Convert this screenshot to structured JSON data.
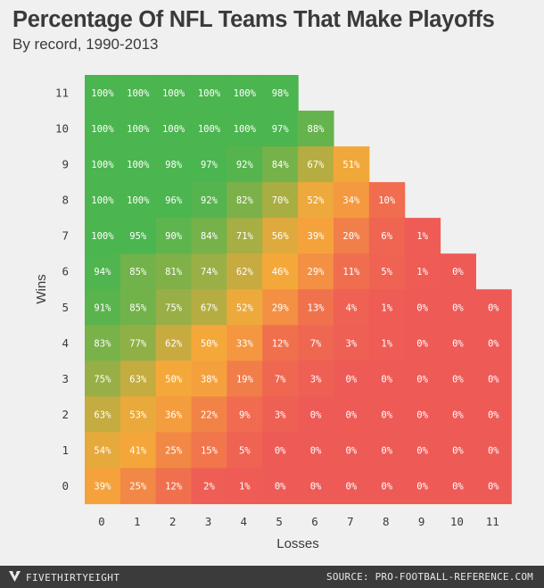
{
  "title": "Percentage Of NFL Teams That Make Playoffs",
  "subtitle": "By record, 1990-2013",
  "footer": {
    "brand": "FIVETHIRTYEIGHT",
    "source": "SOURCE: PRO-FOOTBALL-REFERENCE.COM"
  },
  "colors": {
    "high": "#4bb54f",
    "mid": "#f5a83a",
    "low": "#ee5a56",
    "background": "#f0f0f0",
    "footer": "#3b3b3b"
  },
  "chart_data": {
    "type": "heatmap",
    "title": "Percentage Of NFL Teams That Make Playoffs",
    "subtitle": "By record, 1990-2013",
    "xlabel": "Losses",
    "ylabel": "Wins",
    "x_ticks": [
      "0",
      "1",
      "2",
      "3",
      "4",
      "5",
      "6",
      "7",
      "8",
      "9",
      "10",
      "11"
    ],
    "y_ticks": [
      "0",
      "1",
      "2",
      "3",
      "4",
      "5",
      "6",
      "7",
      "8",
      "9",
      "10",
      "11"
    ],
    "rows": [
      {
        "wins": 11,
        "labels": [
          "100%",
          "100%",
          "100%",
          "100%",
          "100%",
          "98%"
        ],
        "values": [
          100,
          100,
          100,
          100,
          100,
          98
        ]
      },
      {
        "wins": 10,
        "labels": [
          "100%",
          "100%",
          "100%",
          "100%",
          "100%",
          "97%",
          "88%"
        ],
        "values": [
          100,
          100,
          100,
          100,
          100,
          97,
          88
        ]
      },
      {
        "wins": 9,
        "labels": [
          "100%",
          "100%",
          "98%",
          "97%",
          "92%",
          "84%",
          "67%",
          "51%"
        ],
        "values": [
          100,
          100,
          98,
          97,
          92,
          84,
          67,
          51
        ]
      },
      {
        "wins": 8,
        "labels": [
          "100%",
          "100%",
          "96%",
          "92%",
          "82%",
          "70%",
          "52%",
          "34%",
          "10%"
        ],
        "values": [
          100,
          100,
          96,
          92,
          82,
          70,
          52,
          34,
          10
        ]
      },
      {
        "wins": 7,
        "labels": [
          "100%",
          "95%",
          "90%",
          "84%",
          "71%",
          "56%",
          "39%",
          "20%",
          "6%",
          "1%"
        ],
        "values": [
          100,
          95,
          90,
          84,
          71,
          56,
          39,
          20,
          6,
          1
        ]
      },
      {
        "wins": 6,
        "labels": [
          "94%",
          "85%",
          "81%",
          "74%",
          "62%",
          "46%",
          "29%",
          "11%",
          "5%",
          "1%",
          "0%"
        ],
        "values": [
          94,
          85,
          81,
          74,
          62,
          46,
          29,
          11,
          5,
          1,
          0
        ]
      },
      {
        "wins": 5,
        "labels": [
          "91%",
          "85%",
          "75%",
          "67%",
          "52%",
          "29%",
          "13%",
          "4%",
          "1%",
          "0%",
          "0%",
          "0%"
        ],
        "values": [
          91,
          85,
          75,
          67,
          52,
          29,
          13,
          4,
          1,
          0,
          0,
          0
        ]
      },
      {
        "wins": 4,
        "labels": [
          "83%",
          "77%",
          "62%",
          "50%",
          "33%",
          "12%",
          "7%",
          "3%",
          "1%",
          "0%",
          "0%",
          "0%"
        ],
        "values": [
          83,
          77,
          62,
          50,
          33,
          12,
          7,
          3,
          1,
          0,
          0,
          0
        ]
      },
      {
        "wins": 3,
        "labels": [
          "75%",
          "63%",
          "50%",
          "38%",
          "19%",
          "7%",
          "3%",
          "0%",
          "0%",
          "0%",
          "0%",
          "0%"
        ],
        "values": [
          75,
          63,
          50,
          38,
          19,
          7,
          3,
          0,
          0,
          0,
          0,
          0
        ]
      },
      {
        "wins": 2,
        "labels": [
          "63%",
          "53%",
          "36%",
          "22%",
          "9%",
          "3%",
          "0%",
          "0%",
          "0%",
          "0%",
          "0%",
          "0%"
        ],
        "values": [
          63,
          53,
          36,
          22,
          9,
          3,
          0,
          0,
          0,
          0,
          0,
          0
        ]
      },
      {
        "wins": 1,
        "labels": [
          "54%",
          "41%",
          "25%",
          "15%",
          "5%",
          "0%",
          "0%",
          "0%",
          "0%",
          "0%",
          "0%",
          "0%"
        ],
        "values": [
          54,
          41,
          25,
          15,
          5,
          0,
          0,
          0,
          0,
          0,
          0,
          0
        ]
      },
      {
        "wins": 0,
        "labels": [
          "39%",
          "25%",
          "12%",
          "2%",
          "1%",
          "0%",
          "0%",
          "0%",
          "0%",
          "0%",
          "0%",
          "0%"
        ],
        "values": [
          39,
          25,
          12,
          2,
          1,
          0,
          0,
          0,
          0,
          0,
          0,
          0
        ]
      }
    ]
  }
}
